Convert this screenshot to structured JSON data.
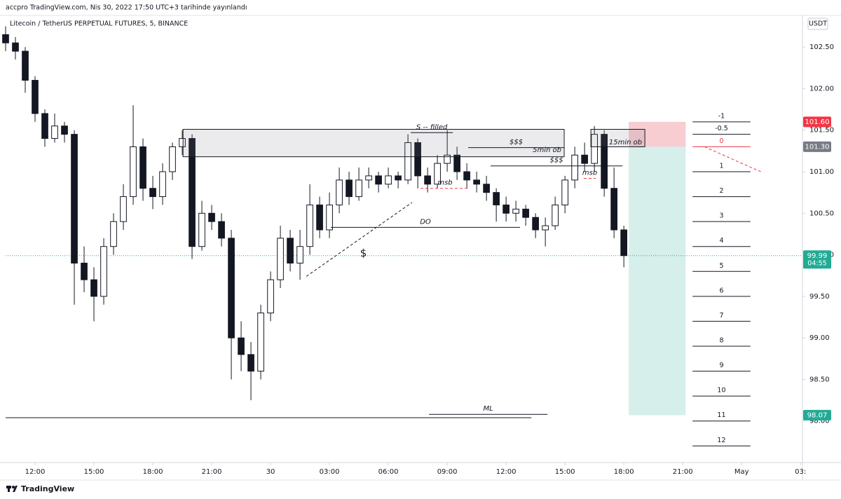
{
  "header": {
    "published": "accpro TradingView.com, Nis 30, 2022 17:50 UTC+3 tarihinde yayınlandı",
    "symbol": "Litecoin / TetherUS PERPETUAL FUTURES, 5, BINANCE",
    "currency": "USDT",
    "brand": "TradingView"
  },
  "chart_data": {
    "type": "candlestick",
    "x": [
      10.5,
      11,
      11.5,
      12,
      12.5,
      13,
      13.5,
      14,
      14.5,
      15,
      15.5,
      16,
      16.5,
      17,
      17.5,
      18,
      18.5,
      19,
      19.5,
      20,
      20.5,
      21,
      21.5,
      22,
      22.5,
      23,
      23.5,
      24,
      24.5,
      25,
      25.5,
      26,
      26.5,
      27,
      27.5,
      28,
      28.5,
      29,
      29.5,
      30,
      30.5,
      31,
      31.5,
      32,
      32.5,
      33,
      33.5,
      34,
      34.5,
      35,
      35.5,
      36,
      36.5,
      37,
      37.5,
      38,
      38.5,
      39,
      39.5,
      40,
      40.5,
      41,
      41.5,
      42
    ],
    "open": [
      102.65,
      102.55,
      102.45,
      102.1,
      101.7,
      101.4,
      101.55,
      101.45,
      99.9,
      99.7,
      99.5,
      100.1,
      100.4,
      100.7,
      101.3,
      100.8,
      100.7,
      101.0,
      101.3,
      101.4,
      100.1,
      100.5,
      100.4,
      100.2,
      99.0,
      98.8,
      98.6,
      99.3,
      99.7,
      100.2,
      99.9,
      100.1,
      100.6,
      100.3,
      100.6,
      100.9,
      100.7,
      100.9,
      100.95,
      100.85,
      100.95,
      100.9,
      101.35,
      100.95,
      100.85,
      101.1,
      101.2,
      101.0,
      100.9,
      100.85,
      100.75,
      100.6,
      100.5,
      100.55,
      100.45,
      100.3,
      100.35,
      100.6,
      100.9,
      101.2,
      101.1,
      101.45,
      100.8,
      100.3
    ],
    "high": [
      102.75,
      102.62,
      102.5,
      102.15,
      101.75,
      101.7,
      101.6,
      101.5,
      100.1,
      99.85,
      100.2,
      100.5,
      100.85,
      101.8,
      101.4,
      100.95,
      101.1,
      101.35,
      101.5,
      101.45,
      100.65,
      100.6,
      100.5,
      100.3,
      99.2,
      98.95,
      99.4,
      99.8,
      100.35,
      100.3,
      100.3,
      100.85,
      100.7,
      100.75,
      101.05,
      101.0,
      101.05,
      101.05,
      101.0,
      101.05,
      101.0,
      101.45,
      101.4,
      101.05,
      101.2,
      101.5,
      101.3,
      101.1,
      101.0,
      100.95,
      100.8,
      100.7,
      100.65,
      100.6,
      100.5,
      100.45,
      100.7,
      100.95,
      101.3,
      101.35,
      101.55,
      101.5,
      101.05,
      100.35
    ],
    "low": [
      102.45,
      102.35,
      101.95,
      101.6,
      101.3,
      101.35,
      101.35,
      99.4,
      99.55,
      99.2,
      99.4,
      100.0,
      100.3,
      100.6,
      100.65,
      100.55,
      100.6,
      100.9,
      101.2,
      99.95,
      100.05,
      100.3,
      100.1,
      98.5,
      98.6,
      98.25,
      98.5,
      99.2,
      99.6,
      99.8,
      99.7,
      100.0,
      100.2,
      100.2,
      100.5,
      100.6,
      100.65,
      100.8,
      100.75,
      100.8,
      100.8,
      100.85,
      100.8,
      100.75,
      100.8,
      101.0,
      100.9,
      100.8,
      100.75,
      100.65,
      100.4,
      100.4,
      100.4,
      100.35,
      100.2,
      100.1,
      100.3,
      100.5,
      100.8,
      101.0,
      101.0,
      100.7,
      100.2,
      99.85
    ],
    "close": [
      102.55,
      102.45,
      102.1,
      101.7,
      101.4,
      101.55,
      101.45,
      99.9,
      99.7,
      99.5,
      100.1,
      100.4,
      100.7,
      101.3,
      100.8,
      100.7,
      101.0,
      101.3,
      101.4,
      100.1,
      100.5,
      100.4,
      100.2,
      99.0,
      98.8,
      98.6,
      99.3,
      99.7,
      100.2,
      99.9,
      100.1,
      100.6,
      100.3,
      100.6,
      100.9,
      100.7,
      100.9,
      100.95,
      100.85,
      100.95,
      100.9,
      101.35,
      100.95,
      100.85,
      101.1,
      101.2,
      101.0,
      100.9,
      100.85,
      100.75,
      100.6,
      100.5,
      100.55,
      100.45,
      100.3,
      100.35,
      100.6,
      100.9,
      101.2,
      101.1,
      101.45,
      100.8,
      100.3,
      99.99
    ],
    "up_color": "#ffffff",
    "down_color": "#131722",
    "wick_color": "#131722",
    "xlim": [
      10.5,
      51.1
    ],
    "ylim": [
      97.5,
      102.83
    ],
    "grid": false,
    "xticks": [
      {
        "value": 12,
        "label": "12:00"
      },
      {
        "value": 15,
        "label": "15:00"
      },
      {
        "value": 18,
        "label": "18:00"
      },
      {
        "value": 21,
        "label": "21:00"
      },
      {
        "value": 24,
        "label": "30"
      },
      {
        "value": 27,
        "label": "03:00"
      },
      {
        "value": 30,
        "label": "06:00"
      },
      {
        "value": 33,
        "label": "09:00"
      },
      {
        "value": 36,
        "label": "12:00"
      },
      {
        "value": 39,
        "label": "15:00"
      },
      {
        "value": 42,
        "label": "18:00"
      },
      {
        "value": 45,
        "label": "21:00"
      },
      {
        "value": 48,
        "label": "May"
      },
      {
        "value": 51,
        "label": "03:"
      }
    ],
    "yticks": [
      {
        "value": 98,
        "label": "98.00"
      },
      {
        "value": 98.5,
        "label": "98.50"
      },
      {
        "value": 99,
        "label": "99.00"
      },
      {
        "value": 99.5,
        "label": "99.50"
      },
      {
        "value": 100,
        "label": "100.00"
      },
      {
        "value": 100.5,
        "label": "100.50"
      },
      {
        "value": 101,
        "label": "101.00"
      },
      {
        "value": 101.5,
        "label": "101.50"
      },
      {
        "value": 102,
        "label": "102.00"
      },
      {
        "value": 102.5,
        "label": "102.50"
      }
    ],
    "price_labels": [
      {
        "value": 101.6,
        "label": "101.60",
        "color": "#f23645"
      },
      {
        "value": 101.3,
        "label": "101.30",
        "color": "#787b86"
      },
      {
        "value": 99.99,
        "label": "99.99",
        "color": "#22ab94"
      },
      {
        "value": 98.07,
        "label": "98.07",
        "color": "#22ab94"
      }
    ],
    "countdown": "04:55",
    "position": {
      "x": [
        42.25,
        45.15
      ],
      "stop_color": "#f7cdd2",
      "target_color": "#d6efeb"
    },
    "levels": {
      "labels": [
        -1,
        -0.5,
        0,
        1,
        2,
        3,
        4,
        5,
        6,
        7,
        8,
        9,
        10,
        11,
        12
      ],
      "prices": [
        101.6,
        101.45,
        101.3,
        101.0,
        100.7,
        100.4,
        100.1,
        99.8,
        99.5,
        99.2,
        98.9,
        98.6,
        98.3,
        98.0,
        97.7
      ],
      "x": [
        45.5,
        48.45
      ],
      "zero_color": "#f23645"
    },
    "drawings": [
      {
        "kind": "box",
        "x": [
          19.54,
          38.96
        ],
        "y": [
          101.51,
          101.18
        ],
        "label": "5min ob"
      },
      {
        "kind": "box",
        "x": [
          40.32,
          43.07
        ],
        "y": [
          101.51,
          101.3
        ],
        "label": "15min ob"
      },
      {
        "kind": "line",
        "x": [
          31.14,
          33.29
        ],
        "y": [
          101.47,
          101.47
        ],
        "label": "S -- filled"
      },
      {
        "kind": "line",
        "x": [
          34.07,
          38.96
        ],
        "y": [
          101.29,
          101.29
        ],
        "label": "$$$"
      },
      {
        "kind": "line",
        "x": [
          35.21,
          41.93
        ],
        "y": [
          101.07,
          101.07
        ],
        "label": "$$$"
      },
      {
        "kind": "dashed",
        "x": [
          31.64,
          34.14
        ],
        "y": [
          100.8,
          100.8
        ],
        "label": "msb",
        "color": "#f23645"
      },
      {
        "kind": "dashed",
        "x": [
          39.96,
          40.57
        ],
        "y": [
          100.92,
          100.92
        ],
        "label": "msb",
        "color": "#f23645"
      },
      {
        "kind": "line",
        "x": [
          27.07,
          36.71
        ],
        "y": [
          100.33,
          100.33
        ],
        "label": "DO"
      },
      {
        "kind": "dashed",
        "x": [
          25.82,
          31.21
        ],
        "y": [
          99.74,
          100.63
        ],
        "label": "$"
      },
      {
        "kind": "line",
        "x": [
          32.07,
          38.11
        ],
        "y": [
          98.08,
          98.08
        ],
        "label": "ML"
      },
      {
        "kind": "line",
        "x": [
          10.5,
          37.29
        ],
        "y": [
          98.04,
          98.04
        ]
      },
      {
        "kind": "dashed",
        "x": [
          46.11,
          49.07
        ],
        "y": [
          101.3,
          100.99
        ],
        "color": "#f23645"
      }
    ]
  }
}
